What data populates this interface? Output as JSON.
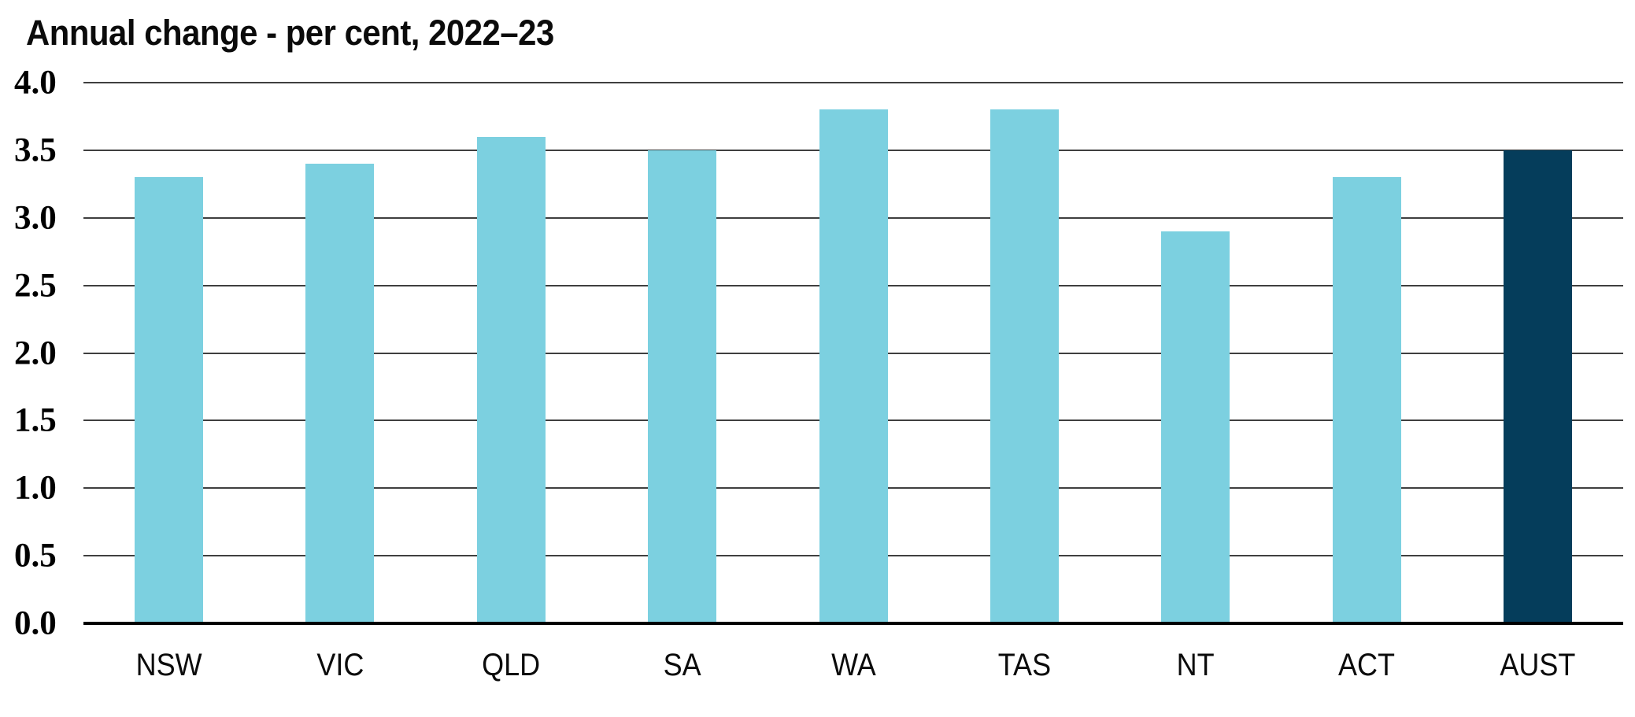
{
  "chart_data": {
    "type": "bar",
    "title": "Annual change - per cent, 2022–23",
    "xlabel": "",
    "ylabel": "",
    "categories": [
      "NSW",
      "VIC",
      "QLD",
      "SA",
      "WA",
      "TAS",
      "NT",
      "ACT",
      "AUST"
    ],
    "values": [
      3.3,
      3.4,
      3.6,
      3.5,
      3.8,
      3.8,
      2.9,
      3.3,
      3.5
    ],
    "bar_colors": [
      "#7CD0E0",
      "#7CD0E0",
      "#7CD0E0",
      "#7CD0E0",
      "#7CD0E0",
      "#7CD0E0",
      "#7CD0E0",
      "#7CD0E0",
      "#053D5B"
    ],
    "highlight_category": "AUST",
    "ylim": [
      0,
      4.0
    ],
    "ytick_step": 0.5,
    "ytick_labels": [
      "0.0",
      "0.5",
      "1.0",
      "1.5",
      "2.0",
      "2.5",
      "3.0",
      "3.5",
      "4.0"
    ],
    "grid": "horizontal",
    "legend": "none",
    "colors": {
      "bar_default": "#7CD0E0",
      "bar_highlight": "#053D5B",
      "gridline": "#3f3f3f",
      "axis": "#000000",
      "text": "#000000",
      "background": "#ffffff"
    }
  }
}
